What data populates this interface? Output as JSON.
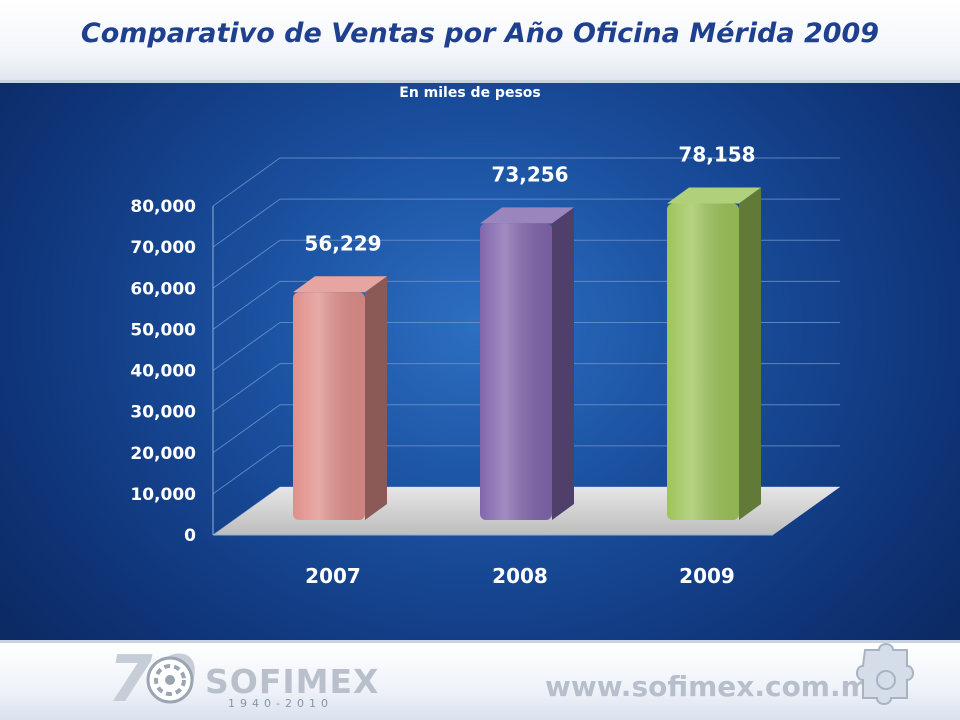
{
  "slide": {
    "title": "Comparativo de Ventas por Año Oficina Mérida 2009"
  },
  "chart_data": {
    "type": "bar",
    "subtitle": "En miles de pesos",
    "categories": [
      "2007",
      "2008",
      "2009"
    ],
    "values": [
      56229,
      73256,
      78158
    ],
    "value_labels": [
      "56,229",
      "73,256",
      "78,158"
    ],
    "colors": [
      "#e08f8a",
      "#8266ad",
      "#9ec45a"
    ],
    "ylim": [
      0,
      80000
    ],
    "yticks": [
      "0",
      "10,000",
      "20,000",
      "30,000",
      "40,000",
      "50,000",
      "60,000",
      "70,000",
      "80,000"
    ],
    "grid": true,
    "legend": "none"
  },
  "footer": {
    "logo_number": "70",
    "logo_name": "SOFIMEX",
    "logo_years": "1940-2010",
    "website": "www.sofimex.com.mx"
  }
}
